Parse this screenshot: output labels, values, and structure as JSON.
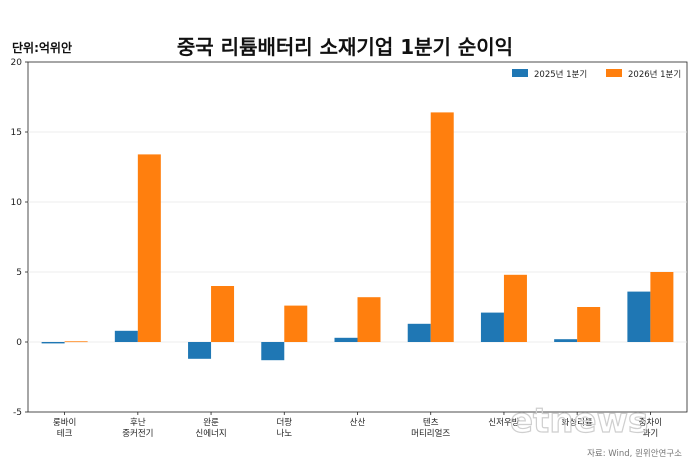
{
  "chart_data": {
    "type": "bar",
    "title": "중국 리튬배터리 소재기업 1분기 순이익",
    "unit_label": "단위:억위안",
    "source": "자료: Wind, 윈위안연구소",
    "watermark": "etnews",
    "ylim": [
      -5,
      20
    ],
    "yticks": [
      -5,
      0,
      5,
      10,
      15,
      20
    ],
    "legend_position": "top-right",
    "categories": [
      [
        "룽바이",
        "테크"
      ],
      [
        "후난",
        "중커전기"
      ],
      [
        "완룬",
        "신에너지"
      ],
      [
        "더팡",
        "나노"
      ],
      [
        "산산"
      ],
      [
        "텐츠",
        "머티리얼즈"
      ],
      [
        "신저우방"
      ],
      [
        "화성리튬"
      ],
      [
        "중차이",
        "과기"
      ]
    ],
    "series": [
      {
        "name": "2025년 1분기",
        "color": "#1f77b4",
        "values": [
          -0.1,
          0.8,
          -1.2,
          -1.3,
          0.3,
          1.3,
          2.1,
          0.2,
          3.6
        ]
      },
      {
        "name": "2026년 1분기",
        "color": "#ff7f0e",
        "values": [
          0.05,
          13.4,
          4.0,
          2.6,
          3.2,
          16.4,
          4.8,
          2.5,
          5.0
        ]
      }
    ]
  }
}
